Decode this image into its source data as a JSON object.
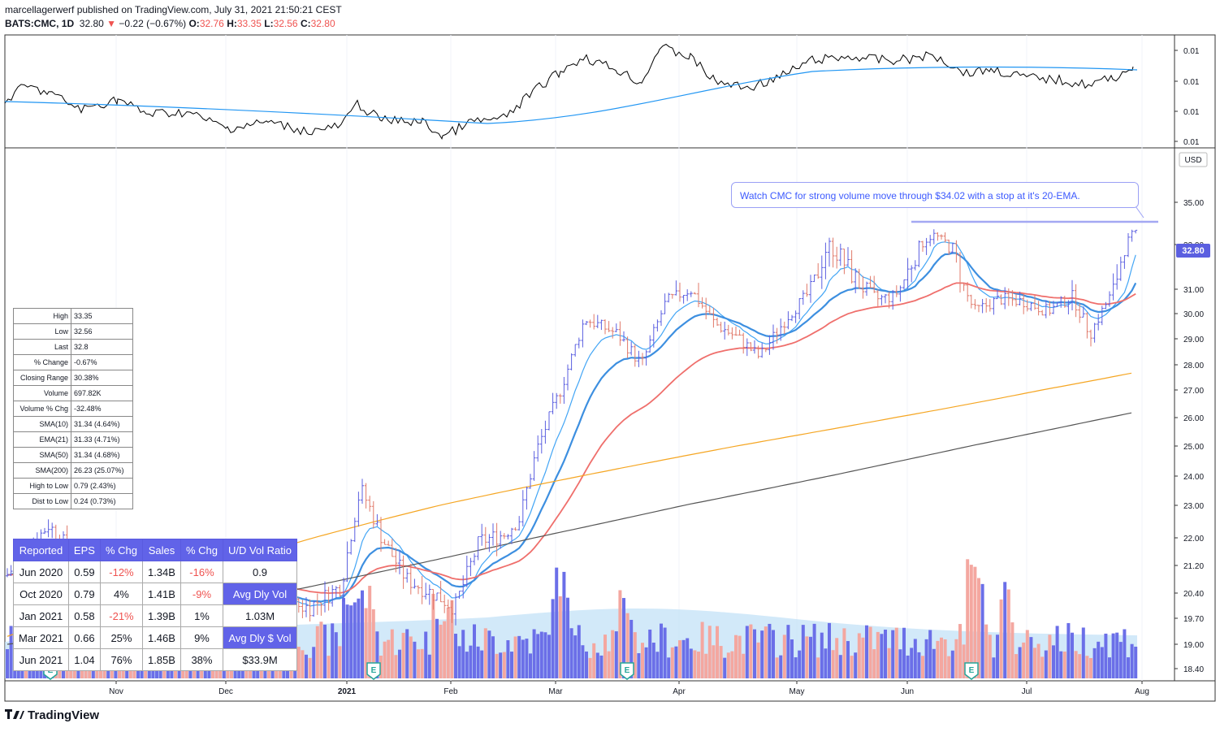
{
  "header": {
    "published": "marcellagerwerf published on TradingView.com, July 31, 2021 21:50:21 CEST",
    "symbol": "BATS:CMC, 1D",
    "last": "32.80",
    "change": "−0.22 (−0.67%)",
    "o_label": "O:",
    "o": "32.76",
    "h_label": "H:",
    "h": "33.35",
    "l_label": "L:",
    "l": "32.56",
    "c_label": "C:",
    "c": "32.80"
  },
  "callout": "Watch CMC for strong volume move through $34.02 with a stop at it's 20-EMA.",
  "price_axis": {
    "currency": "USD",
    "last_badge": "32.80",
    "ticks": [
      "35.00",
      "32.00",
      "31.00",
      "30.00",
      "29.00",
      "28.00",
      "27.00",
      "26.00",
      "25.00",
      "24.00",
      "23.00",
      "22.00",
      "21.20",
      "20.40",
      "19.70",
      "19.00",
      "18.40"
    ]
  },
  "indicator_axis": {
    "ticks": [
      "0.01",
      "0.01",
      "0.01",
      "0.01"
    ]
  },
  "time_axis": {
    "labels": [
      "Nov",
      "Dec",
      "2021",
      "Feb",
      "Mar",
      "Apr",
      "May",
      "Jun",
      "Jul",
      "Aug"
    ]
  },
  "stats_table": [
    {
      "k": "High",
      "v": "33.35"
    },
    {
      "k": "Low",
      "v": "32.56"
    },
    {
      "k": "Last",
      "v": "32.8"
    },
    {
      "k": "% Change",
      "v": "-0.67%"
    },
    {
      "k": "Closing Range",
      "v": "30.38%"
    },
    {
      "k": "Volume",
      "v": "697.82K"
    },
    {
      "k": "Volume % Chg",
      "v": "-32.48%"
    },
    {
      "k": "SMA(10)",
      "v": "31.34 (4.64%)"
    },
    {
      "k": "EMA(21)",
      "v": "31.33 (4.71%)"
    },
    {
      "k": "SMA(50)",
      "v": "31.34 (4.68%)"
    },
    {
      "k": "SMA(200)",
      "v": "26.23 (25.07%)"
    },
    {
      "k": "High to Low",
      "v": "0.79 (2.43%)"
    },
    {
      "k": "Dist to Low",
      "v": "0.24 (0.73%)"
    }
  ],
  "earnings_table": {
    "headers": [
      "Reported",
      "EPS",
      "% Chg",
      "Sales",
      "% Chg",
      "U/D Vol Ratio"
    ],
    "rows": [
      [
        "Jun 2020",
        "0.59",
        "-12%",
        "1.34B",
        "-16%",
        "0.9"
      ],
      [
        "Oct 2020",
        "0.79",
        "4%",
        "1.41B",
        "-9%",
        "Avg Dly Vol"
      ],
      [
        "Jan 2021",
        "0.58",
        "-21%",
        "1.39B",
        "1%",
        "1.03M"
      ],
      [
        "Mar 2021",
        "0.66",
        "25%",
        "1.46B",
        "9%",
        "Avg Dly $ Vol"
      ],
      [
        "Jun 2021",
        "1.04",
        "76%",
        "1.85B",
        "38%",
        "$33.9M"
      ]
    ]
  },
  "logo": "TradingView",
  "earnings_marker": "E",
  "colors": {
    "up": "#5b5fe0",
    "down": "#e0796a",
    "ema_fast": "#42a5f5",
    "ema_slow": "#3d8fe0",
    "sma50": "#ef6f6c",
    "sma150": "#f5a623",
    "sma200": "#555555",
    "rs": "#000000",
    "rs_ma": "#2196f3",
    "vol_up": "#6b6fe8",
    "vol_down": "#f4a7a0",
    "vol_area": "#bfe0f7"
  },
  "chart_data": {
    "type": "line",
    "title": "BATS:CMC, 1D",
    "series": [
      {
        "name": "close",
        "x": [
          "Nov",
          "Dec",
          "2021",
          "Feb",
          "Mar",
          "Apr",
          "May",
          "Jun",
          "Jul",
          "Aug"
        ],
        "values": [
          19.9,
          20.5,
          21.0,
          20.4,
          25.2,
          29.6,
          31.2,
          33.0,
          30.8,
          32.8
        ]
      },
      {
        "name": "SMA(200)",
        "x": [
          "Nov",
          "Dec",
          "2021",
          "Feb",
          "Mar",
          "Apr",
          "May",
          "Jun",
          "Jul",
          "Aug"
        ],
        "values": [
          19.3,
          19.6,
          20.0,
          20.4,
          21.2,
          22.1,
          23.2,
          24.4,
          25.5,
          26.2
        ]
      }
    ],
    "ylim": [
      18.2,
      36.0
    ],
    "ylabel": "USD"
  }
}
